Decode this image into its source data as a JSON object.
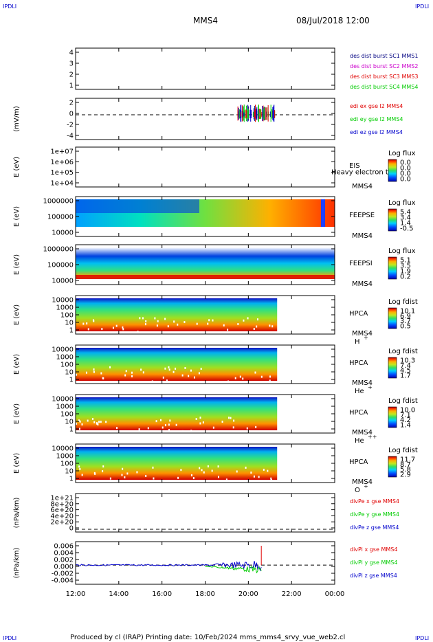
{
  "header": {
    "corner_label": "IPDLI",
    "spacecraft": "MMS4",
    "datetime": "08/Jul/2018 12:00"
  },
  "footer": {
    "text": "Produced by cl (IRAP)   Printing date: 10/Feb/2024   mms_mms4_srvy_vue_web2.cl"
  },
  "colors": {
    "c1": "#000080",
    "c2": "#cc00cc",
    "c3": "#e00000",
    "c4": "#00cc00",
    "red": "#e00000",
    "green": "#00cc00",
    "blue": "#0000cc"
  },
  "time_axis": {
    "ticks": [
      "12:00",
      "14:00",
      "16:00",
      "18:00",
      "20:00",
      "22:00",
      "00:00"
    ],
    "start_hours": 12,
    "end_hours": 24
  },
  "panels": [
    {
      "id": "des",
      "ylabel": "",
      "yticks": [
        "4",
        "3",
        "2",
        "1"
      ],
      "legend": [
        {
          "text": "des dist burst SC1 MMS1",
          "color": "#000080"
        },
        {
          "text": "des dist burst SC2 MMS2",
          "color": "#cc00cc"
        },
        {
          "text": "des dist burst SC3 MMS3",
          "color": "#e00000"
        },
        {
          "text": "des dist burst SC4 MMS4",
          "color": "#00cc00"
        }
      ]
    },
    {
      "id": "edi",
      "ylabel": "(mV/m)",
      "yticks": [
        "2",
        "0",
        "-2",
        "-4"
      ],
      "legend": [
        {
          "text": "edi ex gse l2 MMS4",
          "color": "#e00000"
        },
        {
          "text": "edi ey gse l2 MMS4",
          "color": "#00cc00"
        },
        {
          "text": "edi ez gse l2 MMS4",
          "color": "#0000cc"
        }
      ]
    },
    {
      "id": "eis",
      "ylabel": "E (eV)",
      "yticks": [
        "1e+07",
        "1e+06",
        "1e+05",
        "1e+04"
      ],
      "name": "EIS",
      "overlay": "Heavy electron to",
      "sc": "MMS4",
      "cbar_title": "Log flux",
      "cbar_ticks": [
        "0.0",
        "0.0",
        "0.0",
        "0.0"
      ]
    },
    {
      "id": "feepse",
      "ylabel": "E (eV)",
      "yticks": [
        "1000000",
        "100000",
        "10000"
      ],
      "name": "FEEPSE",
      "sc": "MMS4",
      "cbar_title": "Log flux",
      "cbar_ticks": [
        "5.4",
        "3.4",
        "1.4",
        "-0.5"
      ]
    },
    {
      "id": "feepsi",
      "ylabel": "E (eV)",
      "yticks": [
        "1000000",
        "100000",
        "10000"
      ],
      "name": "FEEPSI",
      "sc": "MMS4",
      "cbar_title": "Log flux",
      "cbar_ticks": [
        "5.1",
        "3.5",
        "1.9",
        "0.2"
      ]
    },
    {
      "id": "hpca_h",
      "ylabel": "E (eV)",
      "yticks": [
        "10000",
        "1000",
        "100",
        "10",
        "1"
      ],
      "name": "HPCA",
      "sc": "MMS4",
      "species": "H",
      "species_sup": "+",
      "cbar_title": "Log fdist",
      "cbar_ticks": [
        "10.1",
        "6.9",
        "3.7",
        "0.5"
      ]
    },
    {
      "id": "hpca_he",
      "ylabel": "E (eV)",
      "yticks": [
        "10000",
        "1000",
        "100",
        "10",
        "1"
      ],
      "name": "HPCA",
      "sc": "MMS4",
      "species": "He",
      "species_sup": "+",
      "cbar_title": "Log fdist",
      "cbar_ticks": [
        "10.3",
        "7.4",
        "4.5",
        "1.7"
      ]
    },
    {
      "id": "hpca_hepp",
      "ylabel": "E (eV)",
      "yticks": [
        "10000",
        "1000",
        "100",
        "10",
        "1"
      ],
      "name": "HPCA",
      "sc": "MMS4",
      "species": "He",
      "species_sup": "++",
      "cbar_title": "Log fdist",
      "cbar_ticks": [
        "10.0",
        "7.1",
        "4.2",
        "1.4"
      ]
    },
    {
      "id": "hpca_o",
      "ylabel": "E (eV)",
      "yticks": [
        "10000",
        "1000",
        "100",
        "10",
        "1"
      ],
      "name": "HPCA",
      "sc": "MMS4",
      "species": "O",
      "species_sup": "+",
      "cbar_title": "Log fdist",
      "cbar_ticks": [
        "11.7",
        "8.7",
        "5.8",
        "2.9"
      ]
    },
    {
      "id": "divpe",
      "ylabel": "(nPa/km)",
      "yticks": [
        "1e+21",
        "8e+20",
        "6e+20",
        "4e+20",
        "2e+20",
        "0"
      ],
      "legend": [
        {
          "text": "divPe x gse MMS4",
          "color": "#e00000"
        },
        {
          "text": "divPe y gse MMS4",
          "color": "#00cc00"
        },
        {
          "text": "divPe z gse MMS4",
          "color": "#0000cc"
        }
      ]
    },
    {
      "id": "divpi",
      "ylabel": "(nPa/km)",
      "yticks": [
        "0.006",
        "0.004",
        "0.002",
        "0.000",
        "-0.002",
        "-0.004"
      ],
      "legend": [
        {
          "text": "divPi x gse MMS4",
          "color": "#e00000"
        },
        {
          "text": "divPi y gse MMS4",
          "color": "#00cc00"
        },
        {
          "text": "divPi z gse MMS4",
          "color": "#0000cc"
        }
      ]
    }
  ],
  "chart_data": {
    "type": "heatmap",
    "title": "MMS4",
    "x_label": "",
    "x_range": [
      "12:00",
      "00:00"
    ],
    "series": [
      {
        "name": "edi ex gse l2 MMS4",
        "y_range": [
          -4,
          2
        ]
      },
      {
        "name": "divPi x gse MMS4",
        "y_range": [
          -0.004,
          0.006
        ]
      }
    ],
    "data_coverage_end": "21:20"
  }
}
